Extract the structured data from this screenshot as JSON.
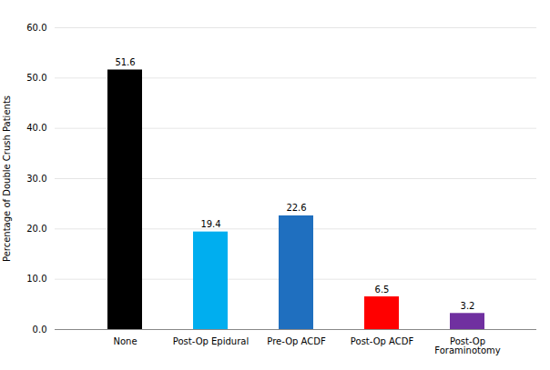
{
  "chart_data": {
    "type": "bar",
    "categories": [
      "None",
      "Post-Op Epidural",
      "Pre-Op ACDF",
      "Post-Op ACDF",
      "Post-Op\nForaminotomy"
    ],
    "values": [
      51.6,
      19.4,
      22.6,
      6.5,
      3.2
    ],
    "colors": [
      "#000000",
      "#00AEEF",
      "#1F6FBF",
      "#FF0000",
      "#7030A0"
    ],
    "ylabel": "Percentage of Double Crush Patients",
    "ylim": [
      0,
      60
    ],
    "yticks": [
      {
        "value": 0,
        "label": "0.0"
      },
      {
        "value": 10,
        "label": "10.0"
      },
      {
        "value": 20,
        "label": "20.0"
      },
      {
        "value": 30,
        "label": "30.0"
      },
      {
        "value": 40,
        "label": "40.0"
      },
      {
        "value": 50,
        "label": "50.0"
      },
      {
        "value": 60,
        "label": "60.0"
      }
    ],
    "grid": true,
    "data_labels": true
  }
}
